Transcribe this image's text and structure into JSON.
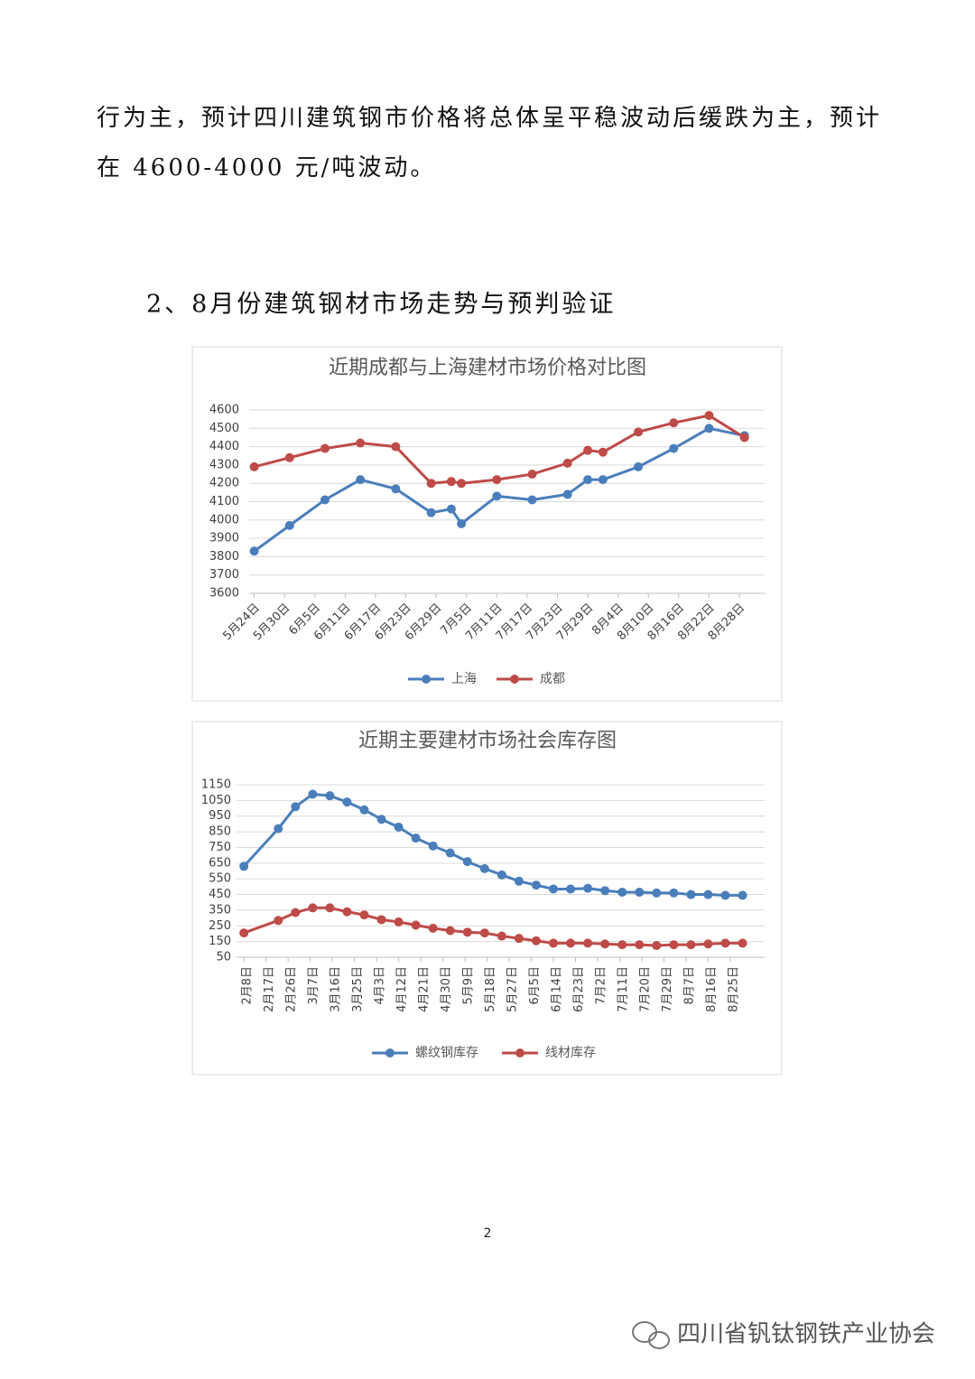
{
  "document": {
    "paragraph": [
      "行为主，预计四川建筑钢市价格将总体呈平稳波动后缓跌为主，预计",
      "在 4600-4000 元/吨波动。"
    ],
    "heading": "2、8月份建筑钢材市场走势与预判验证",
    "page_number": "2",
    "watermark": "四川省钒钛钢铁产业协会"
  },
  "chart_data": [
    {
      "type": "line",
      "title": "近期成都与上海建材市场价格对比图",
      "x": [
        "05-24",
        "05-31",
        "06-07",
        "06-14",
        "06-21",
        "06-28",
        "07-02",
        "07-04",
        "07-11",
        "07-18",
        "07-25",
        "07-29",
        "08-01",
        "08-08",
        "08-15",
        "08-22",
        "08-29"
      ],
      "xlim": [
        "05-23",
        "09-02"
      ],
      "xticks": [
        {
          "value": "05-24",
          "label": "5月24日"
        },
        {
          "value": "05-30",
          "label": "5月30日"
        },
        {
          "value": "06-05",
          "label": "6月5日"
        },
        {
          "value": "06-11",
          "label": "6月11日"
        },
        {
          "value": "06-17",
          "label": "6月17日"
        },
        {
          "value": "06-23",
          "label": "6月23日"
        },
        {
          "value": "06-29",
          "label": "6月29日"
        },
        {
          "value": "07-05",
          "label": "7月5日"
        },
        {
          "value": "07-11",
          "label": "7月11日"
        },
        {
          "value": "07-17",
          "label": "7月17日"
        },
        {
          "value": "07-23",
          "label": "7月23日"
        },
        {
          "value": "07-29",
          "label": "7月29日"
        },
        {
          "value": "08-04",
          "label": "8月4日"
        },
        {
          "value": "08-10",
          "label": "8月10日"
        },
        {
          "value": "08-16",
          "label": "8月16日"
        },
        {
          "value": "08-22",
          "label": "8月22日"
        },
        {
          "value": "08-28",
          "label": "8月28日"
        }
      ],
      "ylim": [
        3600,
        4600
      ],
      "yticks": [
        3600,
        3700,
        3800,
        3900,
        4000,
        4100,
        4200,
        4300,
        4400,
        4500,
        4600
      ],
      "grid": true,
      "legend": "bottom",
      "series": [
        {
          "name": "上海",
          "color": "#4a7ebb",
          "values": [
            3830,
            3970,
            4110,
            4220,
            4170,
            4040,
            4060,
            3980,
            4130,
            4110,
            4140,
            4220,
            4220,
            4290,
            4390,
            4500,
            4460
          ]
        },
        {
          "name": "成都",
          "color": "#be4b48",
          "values": [
            4290,
            4340,
            4390,
            4420,
            4400,
            4200,
            4210,
            4200,
            4220,
            4250,
            4310,
            4380,
            4370,
            4480,
            4530,
            4570,
            4450
          ]
        }
      ]
    },
    {
      "type": "line",
      "title": "近期主要建材市场社会库存图",
      "x": [
        "02-08",
        "02-22",
        "03-01",
        "03-08",
        "03-15",
        "03-22",
        "03-29",
        "04-05",
        "04-12",
        "04-19",
        "04-26",
        "05-03",
        "05-10",
        "05-17",
        "05-24",
        "05-31",
        "06-07",
        "06-14",
        "06-21",
        "06-28",
        "07-05",
        "07-12",
        "07-19",
        "07-26",
        "08-02",
        "08-09",
        "08-16",
        "08-23",
        "08-30"
      ],
      "xlim": [
        "02-05",
        "09-08"
      ],
      "xticks": [
        {
          "value": "02-08",
          "label": "2月8日"
        },
        {
          "value": "02-17",
          "label": "2月17日"
        },
        {
          "value": "02-26",
          "label": "2月26日"
        },
        {
          "value": "03-07",
          "label": "3月7日"
        },
        {
          "value": "03-16",
          "label": "3月16日"
        },
        {
          "value": "03-25",
          "label": "3月25日"
        },
        {
          "value": "04-03",
          "label": "4月3日"
        },
        {
          "value": "04-12",
          "label": "4月12日"
        },
        {
          "value": "04-21",
          "label": "4月21日"
        },
        {
          "value": "04-30",
          "label": "4月30日"
        },
        {
          "value": "05-09",
          "label": "5月9日"
        },
        {
          "value": "05-18",
          "label": "5月18日"
        },
        {
          "value": "05-27",
          "label": "5月27日"
        },
        {
          "value": "06-05",
          "label": "6月5日"
        },
        {
          "value": "06-14",
          "label": "6月14日"
        },
        {
          "value": "06-23",
          "label": "6月23日"
        },
        {
          "value": "07-02",
          "label": "7月2日"
        },
        {
          "value": "07-11",
          "label": "7月11日"
        },
        {
          "value": "07-20",
          "label": "7月20日"
        },
        {
          "value": "07-29",
          "label": "7月29日"
        },
        {
          "value": "08-07",
          "label": "8月7日"
        },
        {
          "value": "08-16",
          "label": "8月16日"
        },
        {
          "value": "08-25",
          "label": "8月25日"
        }
      ],
      "ylim": [
        50,
        1150
      ],
      "yticks": [
        50,
        150,
        250,
        350,
        450,
        550,
        650,
        750,
        850,
        950,
        1050,
        1150
      ],
      "grid": true,
      "legend": "bottom",
      "series": [
        {
          "name": "螺纹钢库存",
          "color": "#4a7ebb",
          "values": [
            630,
            870,
            1010,
            1090,
            1080,
            1040,
            990,
            930,
            880,
            810,
            760,
            715,
            660,
            615,
            575,
            535,
            510,
            485,
            485,
            490,
            475,
            465,
            465,
            460,
            460,
            450,
            450,
            445,
            445
          ]
        },
        {
          "name": "线材库存",
          "color": "#be4b48",
          "values": [
            205,
            285,
            335,
            365,
            365,
            340,
            320,
            290,
            275,
            255,
            235,
            220,
            210,
            205,
            185,
            170,
            155,
            140,
            140,
            140,
            135,
            130,
            130,
            125,
            130,
            130,
            135,
            140,
            140
          ]
        }
      ]
    }
  ]
}
